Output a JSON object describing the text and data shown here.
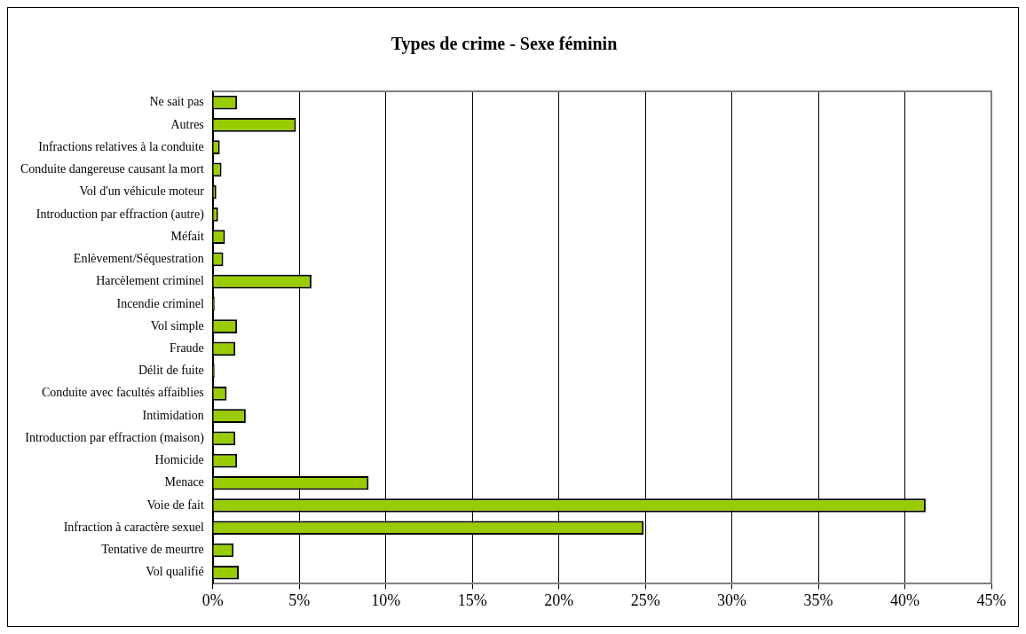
{
  "chart_data": {
    "type": "bar",
    "orientation": "horizontal",
    "title": "Types de crime - Sexe féminin",
    "categories": [
      "Ne sait pas",
      "Autres",
      "Infractions relatives à la conduite",
      "Conduite dangereuse causant la mort",
      "Vol d'un véhicule moteur",
      "Introduction par effraction (autre)",
      "Méfait",
      "Enlèvement/Séquestration",
      "Harcèlement criminel",
      "Incendie criminel",
      "Vol simple",
      "Fraude",
      "Délit de fuite",
      "Conduite avec facultés affaiblies",
      "Intimidation",
      "Introduction par effraction (maison)",
      "Homicide",
      "Menace",
      "Voie de fait",
      "Infraction à caractère sexuel",
      "Tentative de meurtre",
      "Vol qualifié"
    ],
    "values": [
      1.4,
      4.8,
      0.4,
      0.5,
      0.2,
      0.3,
      0.7,
      0.6,
      5.7,
      0.1,
      1.4,
      1.3,
      0.1,
      0.8,
      1.9,
      1.3,
      1.4,
      9.0,
      41.2,
      24.9,
      1.2,
      1.5
    ],
    "color": "#99cc00",
    "xlim": [
      0,
      45
    ],
    "xticks": [
      {
        "value": 0,
        "label": "0%"
      },
      {
        "value": 5,
        "label": "5%"
      },
      {
        "value": 10,
        "label": "10%"
      },
      {
        "value": 15,
        "label": "15%"
      },
      {
        "value": 20,
        "label": "20%"
      },
      {
        "value": 25,
        "label": "25%"
      },
      {
        "value": 30,
        "label": "30%"
      },
      {
        "value": 35,
        "label": "35%"
      },
      {
        "value": 40,
        "label": "40%"
      },
      {
        "value": 45,
        "label": "45%"
      }
    ],
    "grid": "x",
    "legend": false
  }
}
